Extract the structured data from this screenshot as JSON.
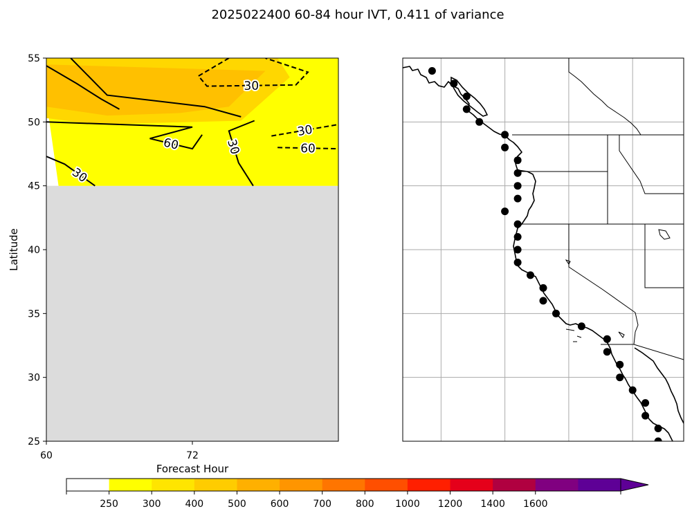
{
  "figure": {
    "title": "2025022400 60-84 hour IVT, 0.411 of variance"
  },
  "chart_data": [
    {
      "type": "contour",
      "panel": "left",
      "xlabel": "Forecast Hour",
      "ylabel": "Latitude",
      "xlim": [
        60,
        84
      ],
      "ylim": [
        25,
        55
      ],
      "xticks": [
        "60",
        "72"
      ],
      "yticks": [
        "25",
        "30",
        "35",
        "40",
        "45",
        "50",
        "55"
      ],
      "missing_region": {
        "lat_below": 45,
        "color": "#dcdcdc"
      },
      "filled_levels": [
        {
          "lower": 250,
          "color": "#ffff00",
          "region": [
            [
              61,
              45
            ],
            [
              84,
              45
            ],
            [
              84,
              55
            ],
            [
              60,
              55
            ],
            [
              60,
              51.7
            ]
          ]
        },
        {
          "lower": 300,
          "color": "#ffd700",
          "region": [
            [
              60,
              50.3
            ],
            [
              64,
              49.8
            ],
            [
              76,
              50.1
            ],
            [
              80,
              53.5
            ],
            [
              79,
              55
            ],
            [
              60,
              55
            ]
          ]
        },
        {
          "lower": 400,
          "color": "#ffc000",
          "region": [
            [
              60,
              51.2
            ],
            [
              65,
              50.5
            ],
            [
              71,
              50.7
            ],
            [
              75,
              51.2
            ],
            [
              78,
              54
            ],
            [
              60,
              54.5
            ]
          ]
        }
      ],
      "contours": [
        {
          "label": "30",
          "style": "dashed",
          "points": [
            [
              75,
              55
            ],
            [
              72.5,
              53.6
            ],
            [
              73.2,
              52.8
            ],
            [
              80.5,
              52.9
            ],
            [
              81.5,
              53.9
            ],
            [
              78,
              55
            ]
          ]
        },
        {
          "label": "30",
          "style": "dashed",
          "points": [
            [
              78.5,
              48.9
            ],
            [
              84,
              49.8
            ]
          ]
        },
        {
          "label": "60",
          "style": "dashed",
          "points": [
            [
              79,
              48
            ],
            [
              84,
              47.9
            ]
          ]
        },
        {
          "label": "30",
          "style": "solid",
          "points": [
            [
              60,
              47.3
            ],
            [
              61.5,
              46.7
            ],
            [
              64,
              45
            ]
          ]
        },
        {
          "label": "60",
          "style": "solid",
          "points": [
            [
              60,
              50
            ],
            [
              72,
              49.6
            ],
            [
              68.5,
              48.7
            ],
            [
              72,
              47.9
            ],
            [
              72.8,
              49
            ]
          ]
        },
        {
          "label": "30",
          "style": "solid",
          "points": [
            [
              77.1,
              50.1
            ],
            [
              75,
              49.3
            ],
            [
              75.8,
              46.8
            ],
            [
              77,
              45
            ]
          ]
        },
        {
          "label": "",
          "style": "solid",
          "points": [
            [
              62,
              55
            ],
            [
              65,
              52.1
            ],
            [
              73,
              51.2
            ],
            [
              76,
              50.4
            ]
          ]
        },
        {
          "label": "",
          "style": "solid",
          "points": [
            [
              60,
              54.4
            ],
            [
              62.5,
              53
            ],
            [
              64.5,
              51.8
            ],
            [
              66,
              51
            ]
          ]
        }
      ]
    },
    {
      "type": "map",
      "panel": "right",
      "region": "US West Coast",
      "lon_range": [
        -137,
        -115
      ],
      "lat_range": [
        25,
        55
      ],
      "gridlines": {
        "lons": [
          -134,
          -129,
          -124,
          -119
        ],
        "lats": [
          30,
          35,
          40,
          45,
          50
        ]
      },
      "points": [
        {
          "lat": 54,
          "lon": -134.7
        },
        {
          "lat": 53,
          "lon": -133
        },
        {
          "lat": 52,
          "lon": -132
        },
        {
          "lat": 51,
          "lon": -132
        },
        {
          "lat": 50,
          "lon": -131
        },
        {
          "lat": 49,
          "lon": -129
        },
        {
          "lat": 48,
          "lon": -129
        },
        {
          "lat": 47,
          "lon": -128
        },
        {
          "lat": 46,
          "lon": -128
        },
        {
          "lat": 45,
          "lon": -128
        },
        {
          "lat": 44,
          "lon": -128
        },
        {
          "lat": 43,
          "lon": -129
        },
        {
          "lat": 42,
          "lon": -128
        },
        {
          "lat": 41,
          "lon": -128
        },
        {
          "lat": 40,
          "lon": -128
        },
        {
          "lat": 39,
          "lon": -128
        },
        {
          "lat": 38,
          "lon": -127
        },
        {
          "lat": 37,
          "lon": -126
        },
        {
          "lat": 36,
          "lon": -126
        },
        {
          "lat": 35,
          "lon": -125
        },
        {
          "lat": 34,
          "lon": -123
        },
        {
          "lat": 33,
          "lon": -121
        },
        {
          "lat": 32,
          "lon": -121
        },
        {
          "lat": 31,
          "lon": -120
        },
        {
          "lat": 30,
          "lon": -120
        },
        {
          "lat": 29,
          "lon": -119
        },
        {
          "lat": 28,
          "lon": -118
        },
        {
          "lat": 27,
          "lon": -118
        },
        {
          "lat": 26,
          "lon": -117
        },
        {
          "lat": 25,
          "lon": -117
        }
      ]
    }
  ],
  "colorbar": {
    "colors": [
      "#ffffff",
      "#ffff00",
      "#ffe500",
      "#ffcc00",
      "#ffb000",
      "#ff9500",
      "#ff7500",
      "#ff4f00",
      "#ff1f00",
      "#e5001a",
      "#b00040",
      "#800080",
      "#5e0096"
    ],
    "extend_color": "#5e0096",
    "tick_labels": [
      "250",
      "300",
      "400",
      "500",
      "600",
      "700",
      "800",
      "1000",
      "1200",
      "1400",
      "1600"
    ]
  }
}
